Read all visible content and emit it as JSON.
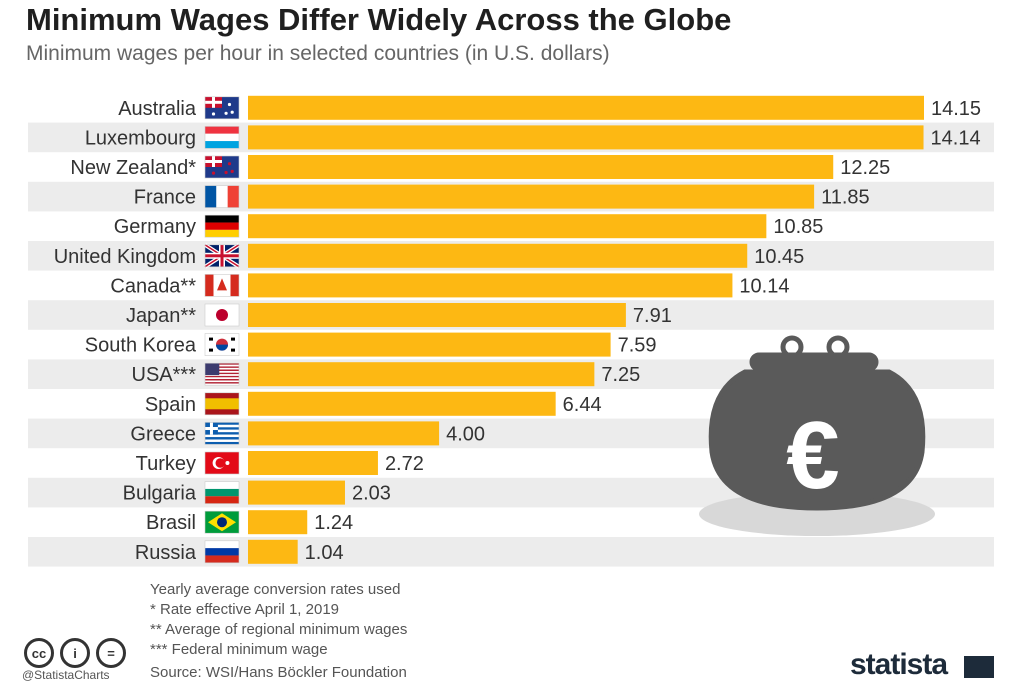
{
  "header": {
    "title": "Minimum Wages Differ Widely Across the Globe",
    "subtitle": "Minimum wages per hour in selected countries (in U.S. dollars)"
  },
  "colors": {
    "bar": "#fdb813",
    "stripe": "#ececec",
    "purse": "#5a5a5a",
    "shadow": "#d8d8d8"
  },
  "chart_data": {
    "type": "bar",
    "orientation": "horizontal",
    "categories": [
      "Australia",
      "Luxembourg",
      "New Zealand*",
      "France",
      "Germany",
      "United Kingdom",
      "Canada**",
      "Japan**",
      "South Korea",
      "USA***",
      "Spain",
      "Greece",
      "Turkey",
      "Bulgaria",
      "Brasil",
      "Russia"
    ],
    "values": [
      14.15,
      14.14,
      12.25,
      11.85,
      10.85,
      10.45,
      10.14,
      7.91,
      7.59,
      7.25,
      6.44,
      4.0,
      2.72,
      2.03,
      1.24,
      1.04
    ],
    "value_labels": [
      "14.15",
      "14.14",
      "12.25",
      "11.85",
      "10.85",
      "10.45",
      "10.14",
      "7.91",
      "7.59",
      "7.25",
      "6.44",
      "4.00",
      "2.72",
      "2.03",
      "1.24",
      "1.04"
    ],
    "flags": [
      "australia-flag",
      "luxembourg-flag",
      "new-zealand-flag",
      "france-flag",
      "germany-flag",
      "uk-flag",
      "canada-flag",
      "japan-flag",
      "south-korea-flag",
      "usa-flag",
      "spain-flag",
      "greece-flag",
      "turkey-flag",
      "bulgaria-flag",
      "brazil-flag",
      "russia-flag"
    ],
    "xlim": [
      0,
      14.15
    ],
    "grid": false,
    "legend": "none"
  },
  "decor": {
    "purse_symbol": "€"
  },
  "footer": {
    "notes": [
      "Yearly average conversion rates used",
      "*   Rate effective April 1, 2019",
      "**   Average of regional minimum wages",
      "***  Federal minimum wage"
    ],
    "handle": "@StatistaCharts",
    "source": "Source: WSI/Hans Böckler Foundation",
    "brand": "statista",
    "cc_icons": [
      "cc",
      "i",
      "="
    ]
  }
}
